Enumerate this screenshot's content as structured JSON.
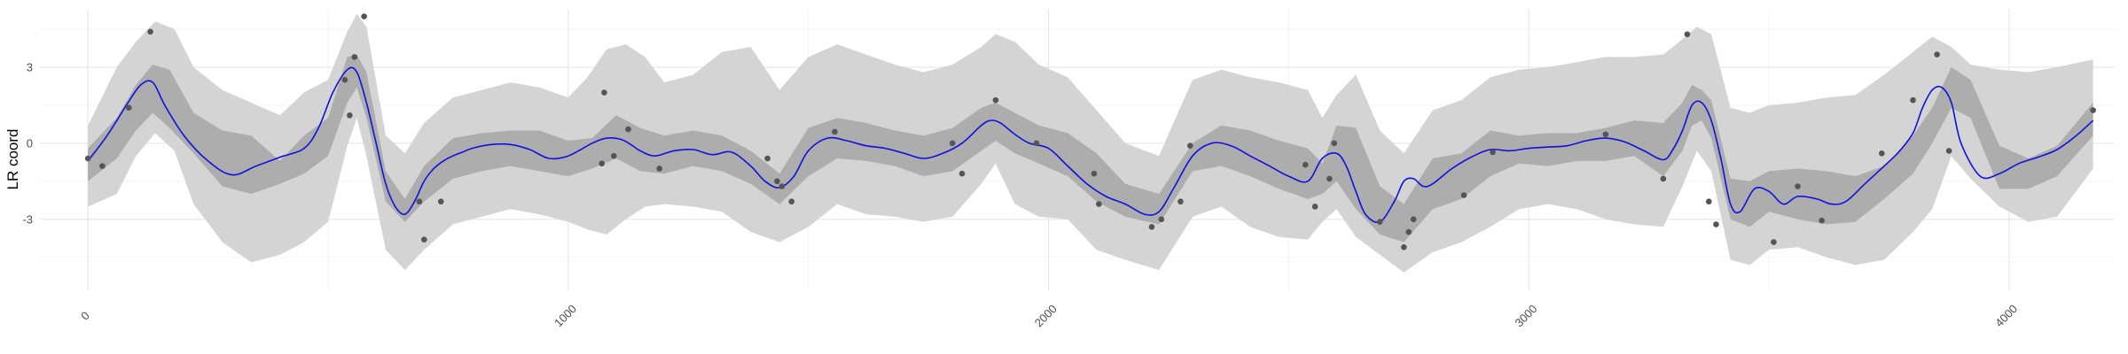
{
  "chart_data": {
    "type": "line",
    "title": "",
    "xlabel": "",
    "ylabel": "LR coord",
    "xlim": [
      -100,
      4220
    ],
    "ylim": [
      -5.8,
      5.3
    ],
    "x_ticks": [
      0,
      1000,
      2000,
      3000,
      4000
    ],
    "y_ticks": [
      -3,
      0,
      3
    ],
    "x_tick_labels": [
      "0",
      "1000",
      "2000",
      "3000",
      "4000"
    ],
    "y_tick_labels": [
      "-3",
      "0",
      "3"
    ],
    "grid": true,
    "legend": "none",
    "colors": {
      "line": "#1010e0",
      "inner_band": "#adadad",
      "outer_band": "#d4d4d4",
      "points": "#555555",
      "grid_major": "#e6e6e6",
      "grid_minor": "#f2f2f2"
    },
    "mean_curve": {
      "x": [
        0,
        40,
        80,
        110,
        135,
        160,
        200,
        250,
        300,
        350,
        400,
        450,
        480,
        510,
        540,
        560,
        580,
        600,
        620,
        640,
        660,
        680,
        700,
        720,
        740,
        760,
        780,
        800,
        840,
        880,
        920,
        960,
        1000,
        1050,
        1080,
        1110,
        1130,
        1150,
        1180,
        1220,
        1260,
        1300,
        1340,
        1380,
        1410,
        1440,
        1470,
        1500,
        1540,
        1580,
        1620,
        1660,
        1700,
        1740,
        1780,
        1820,
        1860,
        1880,
        1900,
        1930,
        1960,
        2000,
        2040,
        2080,
        2120,
        2160,
        2200,
        2230,
        2260,
        2300,
        2340,
        2380,
        2420,
        2460,
        2500,
        2540,
        2570,
        2600,
        2620,
        2640,
        2660,
        2690,
        2720,
        2740,
        2760,
        2780,
        2800,
        2840,
        2880,
        2920,
        2960,
        3000,
        3040,
        3080,
        3120,
        3160,
        3200,
        3240,
        3280,
        3300,
        3320,
        3340,
        3360,
        3380,
        3400,
        3420,
        3440,
        3470,
        3500,
        3530,
        3560,
        3600,
        3630,
        3660,
        3700,
        3740,
        3770,
        3800,
        3820,
        3840,
        3860,
        3880,
        3900,
        3940,
        3980,
        4020,
        4060,
        4100,
        4140,
        4175
      ],
      "y": [
        -0.7,
        0.3,
        1.5,
        2.3,
        2.4,
        1.5,
        0.3,
        -0.7,
        -1.25,
        -0.9,
        -0.55,
        -0.2,
        0.6,
        2.0,
        2.9,
        2.8,
        1.6,
        0.0,
        -1.6,
        -2.5,
        -2.8,
        -2.3,
        -1.5,
        -1.0,
        -0.7,
        -0.5,
        -0.35,
        -0.2,
        -0.05,
        -0.05,
        -0.25,
        -0.6,
        -0.5,
        0.0,
        0.2,
        0.15,
        -0.05,
        -0.3,
        -0.5,
        -0.3,
        -0.25,
        -0.45,
        -0.35,
        -0.9,
        -1.5,
        -1.75,
        -1.3,
        -0.3,
        0.2,
        0.1,
        -0.1,
        -0.2,
        -0.4,
        -0.6,
        -0.4,
        0.0,
        0.7,
        0.9,
        0.8,
        0.35,
        0.0,
        -0.2,
        -0.9,
        -1.6,
        -2.1,
        -2.4,
        -2.8,
        -2.7,
        -1.8,
        -0.5,
        0.0,
        -0.1,
        -0.5,
        -0.9,
        -1.3,
        -1.5,
        -0.6,
        -0.4,
        -0.9,
        -1.9,
        -2.8,
        -3.1,
        -2.3,
        -1.5,
        -1.4,
        -1.7,
        -1.6,
        -1.0,
        -0.55,
        -0.25,
        -0.3,
        -0.2,
        -0.15,
        -0.1,
        0.1,
        0.2,
        0.05,
        -0.3,
        -0.65,
        -0.25,
        0.5,
        1.5,
        1.6,
        0.9,
        -0.6,
        -2.4,
        -2.7,
        -1.8,
        -1.9,
        -2.4,
        -2.1,
        -2.2,
        -2.4,
        -2.3,
        -1.6,
        -0.9,
        -0.35,
        0.4,
        1.4,
        2.1,
        2.2,
        1.6,
        0.0,
        -1.3,
        -1.2,
        -0.8,
        -0.55,
        -0.25,
        0.3,
        0.9
      ]
    },
    "inner_band": {
      "x": [
        0,
        60,
        100,
        135,
        170,
        220,
        280,
        340,
        400,
        450,
        500,
        540,
        560,
        580,
        620,
        660,
        700,
        760,
        820,
        880,
        940,
        1000,
        1050,
        1100,
        1150,
        1200,
        1260,
        1320,
        1380,
        1440,
        1500,
        1560,
        1620,
        1680,
        1740,
        1800,
        1860,
        1890,
        1930,
        1980,
        2040,
        2100,
        2160,
        2230,
        2300,
        2360,
        2420,
        2480,
        2540,
        2570,
        2600,
        2640,
        2690,
        2740,
        2800,
        2860,
        2920,
        2980,
        3040,
        3100,
        3160,
        3220,
        3280,
        3320,
        3340,
        3360,
        3380,
        3420,
        3460,
        3500,
        3560,
        3620,
        3680,
        3740,
        3800,
        3840,
        3880,
        3920,
        3980,
        4040,
        4100,
        4175
      ],
      "lower": [
        -1.5,
        -0.6,
        0.5,
        1.2,
        0.6,
        -0.4,
        -1.7,
        -2.0,
        -1.6,
        -1.2,
        -0.5,
        1.6,
        2.2,
        1.0,
        -2.3,
        -3.1,
        -2.3,
        -1.4,
        -1.1,
        -0.9,
        -1.1,
        -1.3,
        -1.0,
        -0.6,
        -1.1,
        -1.2,
        -0.9,
        -1.1,
        -1.6,
        -2.4,
        -1.3,
        -0.6,
        -0.7,
        -0.9,
        -1.3,
        -1.1,
        -0.3,
        0.1,
        -0.4,
        -0.8,
        -1.3,
        -2.3,
        -2.9,
        -3.2,
        -1.1,
        -0.9,
        -1.3,
        -1.8,
        -2.2,
        -2.0,
        -1.5,
        -2.6,
        -3.6,
        -3.9,
        -2.6,
        -2.2,
        -1.3,
        -0.8,
        -0.9,
        -0.7,
        -0.7,
        -0.5,
        -1.3,
        -0.3,
        0.7,
        0.9,
        0.2,
        -3.0,
        -3.3,
        -2.7,
        -3.0,
        -3.2,
        -3.1,
        -2.2,
        -1.2,
        0.0,
        1.4,
        1.0,
        -1.8,
        -1.8,
        -1.3,
        0.3
      ],
      "upper": [
        -0.2,
        1.0,
        2.3,
        3.1,
        2.9,
        1.2,
        0.5,
        0.3,
        -0.7,
        0.3,
        1.0,
        3.4,
        3.5,
        2.8,
        -1.1,
        -2.2,
        -0.9,
        0.2,
        0.4,
        0.5,
        0.5,
        0.1,
        0.2,
        1.1,
        0.6,
        0.3,
        0.5,
        0.3,
        -0.3,
        -1.2,
        0.6,
        1.0,
        0.8,
        0.5,
        0.3,
        0.6,
        1.4,
        1.6,
        1.2,
        0.7,
        0.4,
        -0.4,
        -1.6,
        -2.0,
        0.0,
        0.7,
        0.5,
        0.1,
        -0.2,
        -0.8,
        0.7,
        0.6,
        -1.7,
        -2.4,
        -0.6,
        -0.4,
        0.5,
        0.3,
        0.4,
        0.4,
        0.6,
        0.9,
        0.8,
        1.6,
        2.3,
        2.1,
        1.7,
        -1.4,
        -1.5,
        -1.1,
        -1.0,
        -1.1,
        -1.3,
        -0.9,
        0.3,
        1.4,
        3.0,
        2.5,
        -0.1,
        -0.6,
        -0.1,
        1.6
      ]
    },
    "outer_band": {
      "x": [
        0,
        60,
        100,
        140,
        180,
        220,
        280,
        340,
        400,
        450,
        500,
        540,
        560,
        580,
        620,
        660,
        700,
        760,
        820,
        880,
        940,
        1000,
        1040,
        1080,
        1120,
        1160,
        1200,
        1260,
        1320,
        1380,
        1440,
        1500,
        1560,
        1620,
        1680,
        1740,
        1800,
        1860,
        1890,
        1930,
        1980,
        2040,
        2100,
        2160,
        2230,
        2300,
        2360,
        2420,
        2480,
        2540,
        2570,
        2600,
        2640,
        2690,
        2740,
        2800,
        2860,
        2920,
        2980,
        3040,
        3100,
        3160,
        3220,
        3280,
        3320,
        3350,
        3380,
        3420,
        3460,
        3500,
        3560,
        3620,
        3680,
        3740,
        3800,
        3840,
        3880,
        3920,
        3980,
        4040,
        4100,
        4175
      ],
      "lower": [
        -2.5,
        -2.0,
        -0.5,
        0.4,
        -0.3,
        -2.4,
        -3.9,
        -4.7,
        -4.4,
        -3.9,
        -3.1,
        -0.1,
        1.0,
        -0.5,
        -4.2,
        -5.0,
        -4.2,
        -3.2,
        -2.9,
        -2.6,
        -2.8,
        -3.1,
        -3.4,
        -3.6,
        -3.0,
        -2.5,
        -2.4,
        -2.5,
        -2.7,
        -3.5,
        -3.9,
        -3.3,
        -2.4,
        -2.8,
        -2.9,
        -3.1,
        -2.9,
        -1.6,
        -0.8,
        -2.4,
        -2.9,
        -3.0,
        -4.2,
        -4.6,
        -5.0,
        -2.9,
        -2.5,
        -3.3,
        -3.7,
        -3.8,
        -3.1,
        -2.6,
        -3.7,
        -4.4,
        -5.1,
        -4.3,
        -3.9,
        -3.3,
        -2.6,
        -2.4,
        -2.6,
        -3.0,
        -3.2,
        -3.3,
        -1.7,
        -0.3,
        -1.1,
        -4.6,
        -4.8,
        -4.2,
        -4.1,
        -4.5,
        -4.8,
        -4.6,
        -3.5,
        -2.6,
        -0.5,
        -1.4,
        -2.5,
        -3.1,
        -2.9,
        -1.0
      ],
      "upper": [
        0.7,
        3.0,
        4.0,
        4.8,
        4.5,
        3.0,
        2.1,
        1.6,
        1.1,
        2.0,
        2.5,
        4.4,
        5.1,
        4.6,
        0.3,
        -0.4,
        0.8,
        1.8,
        2.1,
        2.4,
        2.2,
        1.8,
        2.6,
        3.7,
        3.9,
        3.4,
        2.4,
        2.7,
        3.6,
        3.8,
        2.1,
        3.4,
        3.9,
        3.5,
        3.1,
        2.8,
        3.1,
        3.8,
        4.3,
        4.0,
        3.1,
        2.6,
        1.3,
        0.0,
        -0.5,
        2.5,
        2.9,
        2.6,
        2.4,
        2.1,
        1.0,
        1.9,
        2.7,
        0.5,
        -0.4,
        1.3,
        1.7,
        2.6,
        2.9,
        3.0,
        3.2,
        3.4,
        3.4,
        3.5,
        4.1,
        4.6,
        4.3,
        1.4,
        1.2,
        1.5,
        1.6,
        1.8,
        1.9,
        2.7,
        3.6,
        4.2,
        3.8,
        3.1,
        2.9,
        2.8,
        3.0,
        3.3
      ]
    },
    "points": {
      "x": [
        0,
        30,
        85,
        130,
        535,
        545,
        555,
        575,
        690,
        700,
        735,
        1070,
        1075,
        1095,
        1125,
        1190,
        1415,
        1435,
        1445,
        1465,
        1555,
        1800,
        1820,
        1890,
        1975,
        2095,
        2105,
        2215,
        2235,
        2275,
        2295,
        2535,
        2555,
        2585,
        2595,
        2690,
        2740,
        2750,
        2760,
        2865,
        2925,
        3160,
        3280,
        3330,
        3375,
        3390,
        3510,
        3560,
        3610,
        3735,
        3800,
        3850,
        3875,
        4175
      ],
      "y": [
        -0.6,
        -0.9,
        1.4,
        4.4,
        2.5,
        1.1,
        3.4,
        5.0,
        -2.3,
        -3.8,
        -2.3,
        -0.8,
        2.0,
        -0.5,
        0.55,
        -1.0,
        -0.6,
        -1.5,
        -1.7,
        -2.3,
        0.45,
        0.0,
        -1.2,
        1.7,
        0.0,
        -1.2,
        -2.4,
        -3.3,
        -3.0,
        -2.3,
        -0.1,
        -0.85,
        -2.5,
        -1.4,
        0.0,
        -3.1,
        -4.1,
        -3.5,
        -3.0,
        -2.05,
        -0.35,
        0.35,
        -1.4,
        4.3,
        -2.3,
        -3.2,
        -3.9,
        -1.7,
        -3.05,
        -0.4,
        1.7,
        3.5,
        -0.3,
        1.3
      ]
    }
  }
}
